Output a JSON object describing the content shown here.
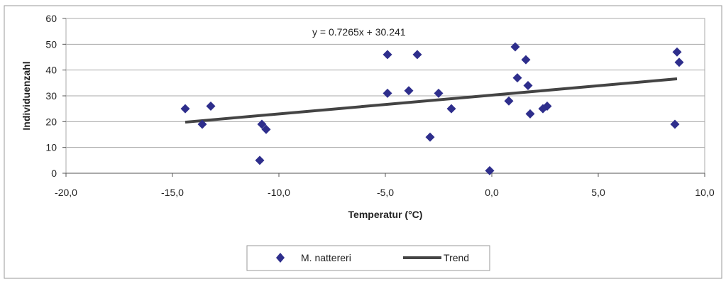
{
  "chart_data": {
    "type": "scatter",
    "title": "",
    "xlabel": "Temperatur (°C)",
    "ylabel": "Individuenzahl",
    "xlim": [
      -20,
      10
    ],
    "ylim": [
      0,
      60
    ],
    "xticks": [
      -20,
      -15,
      -10,
      -5,
      0,
      5,
      10
    ],
    "xtick_labels": [
      "-20,0",
      "-15,0",
      "-10,0",
      "-5,0",
      "0,0",
      "5,0",
      "10,0"
    ],
    "yticks": [
      0,
      10,
      20,
      30,
      40,
      50,
      60
    ],
    "ytick_labels": [
      "0",
      "10",
      "20",
      "30",
      "40",
      "50",
      "60"
    ],
    "grid": "horizontal",
    "legend_position": "bottom",
    "series": [
      {
        "name": "M. nattereri",
        "kind": "scatter",
        "marker": "diamond",
        "color": "#2e2e8c",
        "points": [
          [
            -14.4,
            25
          ],
          [
            -13.6,
            19
          ],
          [
            -13.2,
            26
          ],
          [
            -10.9,
            5
          ],
          [
            -10.8,
            19
          ],
          [
            -10.6,
            17
          ],
          [
            -4.9,
            46
          ],
          [
            -4.9,
            31
          ],
          [
            -3.9,
            32
          ],
          [
            -3.5,
            46
          ],
          [
            -2.9,
            14
          ],
          [
            -2.5,
            31
          ],
          [
            -1.9,
            25
          ],
          [
            -0.1,
            1
          ],
          [
            0.8,
            28
          ],
          [
            1.1,
            49
          ],
          [
            1.2,
            37
          ],
          [
            1.6,
            44
          ],
          [
            1.7,
            34
          ],
          [
            1.8,
            23
          ],
          [
            2.4,
            25
          ],
          [
            2.6,
            26
          ],
          [
            8.6,
            19
          ],
          [
            8.7,
            47
          ],
          [
            8.8,
            43
          ]
        ]
      },
      {
        "name": "Trend",
        "kind": "line",
        "color": "#444444",
        "x": [
          -14.4,
          8.7
        ],
        "y": [
          19.8,
          36.6
        ]
      }
    ],
    "annotations": [
      {
        "text": "y = 0.7265x + 30.241"
      }
    ]
  }
}
